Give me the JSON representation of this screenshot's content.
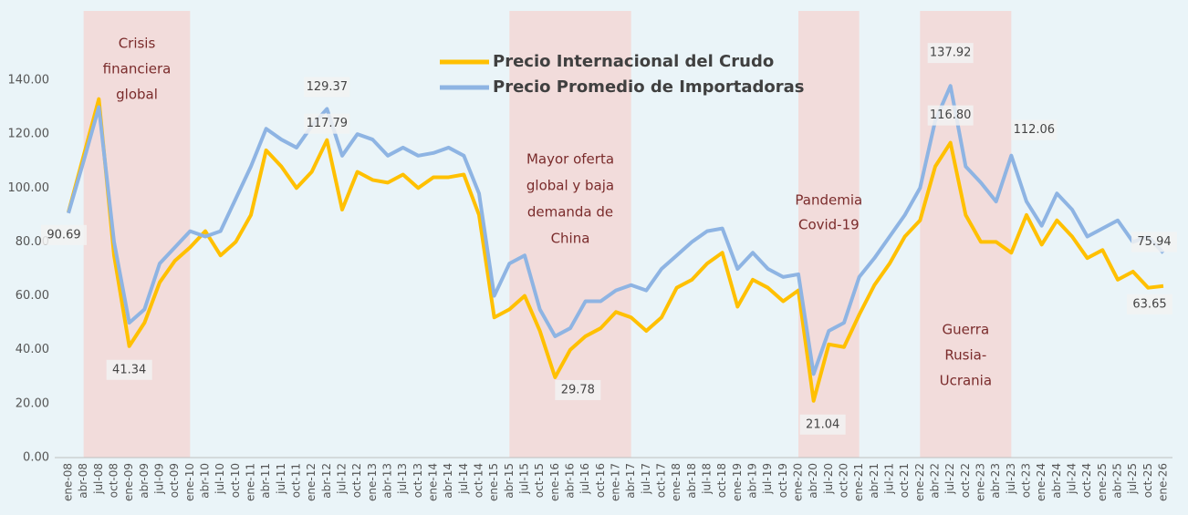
{
  "chart_data": {
    "type": "line",
    "categories": [
      "ene-08",
      "abr-08",
      "jul-08",
      "oct-08",
      "ene-09",
      "abr-09",
      "jul-09",
      "oct-09",
      "ene-10",
      "abr-10",
      "jul-10",
      "oct-10",
      "ene-11",
      "abr-11",
      "jul-11",
      "oct-11",
      "ene-12",
      "abr-12",
      "jul-12",
      "oct-12",
      "ene-13",
      "abr-13",
      "jul-13",
      "oct-13",
      "ene-14",
      "abr-14",
      "jul-14",
      "oct-14",
      "ene-15",
      "abr-15",
      "jul-15",
      "oct-15",
      "ene-16",
      "abr-16",
      "jul-16",
      "oct-16",
      "ene-17",
      "abr-17",
      "jul-17",
      "oct-17",
      "ene-18",
      "abr-18",
      "jul-18",
      "oct-18",
      "ene-19",
      "abr-19",
      "jul-19",
      "oct-19",
      "ene-20",
      "abr-20",
      "jul-20",
      "oct-20",
      "ene-21",
      "abr-21",
      "jul-21",
      "oct-21",
      "ene-22",
      "abr-22",
      "jul-22",
      "oct-22",
      "ene-23",
      "abr-23",
      "jul-23",
      "oct-23",
      "ene-24",
      "abr-24",
      "jul-24",
      "oct-24",
      "ene-25",
      "abr-25",
      "jul-25",
      "oct-25",
      "ene-26"
    ],
    "series": [
      {
        "name": "Precio Internacional del Crudo",
        "color": "#ffc000",
        "values": [
          91,
          112,
          133,
          75,
          41.34,
          50,
          65,
          73,
          78,
          84,
          75,
          80,
          90,
          114,
          108,
          100,
          106,
          117.79,
          92,
          106,
          103,
          102,
          105,
          100,
          104,
          104,
          105,
          90,
          52,
          55,
          60,
          47,
          29.78,
          40,
          45,
          48,
          54,
          52,
          47,
          52,
          63,
          66,
          72,
          76,
          56,
          66,
          63,
          58,
          62,
          21.04,
          42,
          41,
          53,
          64,
          72,
          82,
          88,
          108,
          116.8,
          90,
          80,
          80,
          76,
          90,
          79,
          88,
          82,
          74,
          77,
          66,
          69,
          63,
          63.65
        ],
        "value_labels": [
          null,
          null,
          null,
          null,
          "41.34",
          null,
          null,
          null,
          null,
          null,
          null,
          null,
          null,
          null,
          null,
          null,
          null,
          "117.79",
          null,
          null,
          null,
          null,
          null,
          null,
          null,
          null,
          null,
          null,
          null,
          null,
          null,
          null,
          "29.78",
          null,
          null,
          null,
          null,
          null,
          null,
          null,
          null,
          null,
          null,
          null,
          null,
          null,
          null,
          null,
          null,
          "21.04",
          null,
          null,
          null,
          null,
          null,
          null,
          null,
          null,
          "116.80",
          null,
          null,
          null,
          null,
          null,
          null,
          null,
          null,
          null,
          null,
          null,
          null,
          null,
          "63.65"
        ]
      },
      {
        "name": "Precio Promedio de Importadoras",
        "color": "#8eb4e3",
        "values": [
          90.69,
          110,
          130,
          80,
          50,
          55,
          72,
          78,
          84,
          82,
          84,
          96,
          108,
          122,
          118,
          115,
          123,
          129.37,
          112,
          120,
          118,
          112,
          115,
          112,
          113,
          115,
          112,
          98,
          60,
          72,
          75,
          55,
          45,
          48,
          58,
          58,
          62,
          64,
          62,
          70,
          75,
          80,
          84,
          85,
          70,
          76,
          70,
          67,
          68,
          31,
          47,
          50,
          67,
          74,
          82,
          90,
          100,
          125,
          137.92,
          108,
          102,
          95,
          112.06,
          95,
          86,
          98,
          92,
          82,
          85,
          88,
          80,
          82,
          75.94
        ],
        "value_labels": [
          "90.69",
          null,
          null,
          null,
          null,
          null,
          null,
          null,
          null,
          null,
          null,
          null,
          null,
          null,
          null,
          null,
          null,
          "129.37",
          null,
          null,
          null,
          null,
          null,
          null,
          null,
          null,
          null,
          null,
          null,
          null,
          null,
          null,
          null,
          null,
          null,
          null,
          null,
          null,
          null,
          null,
          null,
          null,
          null,
          null,
          null,
          null,
          null,
          null,
          null,
          null,
          null,
          null,
          null,
          null,
          null,
          null,
          null,
          null,
          "137.92",
          null,
          null,
          null,
          "112.06",
          null,
          null,
          null,
          null,
          null,
          null,
          null,
          null,
          null,
          "75.94"
        ]
      }
    ],
    "ylim": [
      0,
      150
    ],
    "yticks": [
      {
        "value": 0,
        "label": "0.00"
      },
      {
        "value": 20,
        "label": "20.00"
      },
      {
        "value": 40,
        "label": "40.00"
      },
      {
        "value": 60,
        "label": "60.00"
      },
      {
        "value": 80,
        "label": "80.00"
      },
      {
        "value": 100,
        "label": "100.00"
      },
      {
        "value": 120,
        "label": "120.00"
      },
      {
        "value": 140,
        "label": "140.00"
      }
    ],
    "bands": [
      {
        "start": "abr-08",
        "end": "ene-10",
        "label": [
          "Crisis",
          "financiera",
          "global"
        ]
      },
      {
        "start": "abr-15",
        "end": "abr-17",
        "label": [
          "Mayor oferta",
          "global y baja",
          "demanda de",
          "China"
        ]
      },
      {
        "start": "ene-20",
        "end": "ene-21",
        "label": [
          "Pandemia",
          "Covid-19"
        ]
      },
      {
        "start": "ene-22",
        "end": "jul-23",
        "label": [
          "Guerra",
          "Rusia-",
          "Ucrania"
        ]
      }
    ],
    "legend": "top"
  }
}
